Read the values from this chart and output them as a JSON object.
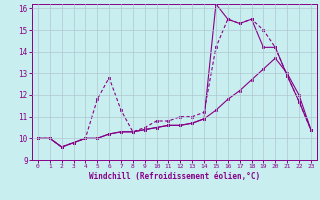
{
  "xlabel": "Windchill (Refroidissement éolien,°C)",
  "bg_color": "#c8eef0",
  "grid_color": "#b0c8d0",
  "line_color": "#880088",
  "xlim": [
    -0.5,
    23.5
  ],
  "ylim": [
    9,
    16.2
  ],
  "xticks": [
    0,
    1,
    2,
    3,
    4,
    5,
    6,
    7,
    8,
    9,
    10,
    11,
    12,
    13,
    14,
    15,
    16,
    17,
    18,
    19,
    20,
    21,
    22,
    23
  ],
  "yticks": [
    9,
    10,
    11,
    12,
    13,
    14,
    15,
    16
  ],
  "line1_x": [
    0,
    1,
    2,
    3,
    4,
    5,
    6,
    7,
    8,
    9,
    10,
    11,
    12,
    13,
    14,
    15,
    16,
    17,
    18,
    19,
    20,
    21,
    22,
    23
  ],
  "line1_y": [
    10,
    10,
    9.6,
    9.8,
    10,
    10,
    10.2,
    10.3,
    10.3,
    10.4,
    10.5,
    10.6,
    10.6,
    10.7,
    10.9,
    11.3,
    11.8,
    12.2,
    12.7,
    13.2,
    13.7,
    13.0,
    12.0,
    10.4
  ],
  "line2_x": [
    0,
    1,
    2,
    3,
    4,
    5,
    6,
    7,
    8,
    9,
    10,
    11,
    12,
    13,
    14,
    15,
    16,
    17,
    18,
    19,
    20,
    21,
    22,
    23
  ],
  "line2_y": [
    10,
    10,
    9.6,
    9.8,
    10,
    11.8,
    12.8,
    11.3,
    10.3,
    10.5,
    10.8,
    10.8,
    11.0,
    11.0,
    11.2,
    14.2,
    15.5,
    15.3,
    15.5,
    15.0,
    14.2,
    12.9,
    11.7,
    10.4
  ],
  "line3_x": [
    0,
    1,
    2,
    3,
    4,
    5,
    6,
    7,
    8,
    9,
    10,
    11,
    12,
    13,
    14,
    15,
    16,
    17,
    18,
    19,
    20,
    21,
    22,
    23
  ],
  "line3_y": [
    10,
    10,
    9.6,
    9.8,
    10,
    10,
    10.2,
    10.3,
    10.3,
    10.4,
    10.5,
    10.6,
    10.6,
    10.7,
    10.9,
    16.2,
    15.5,
    15.3,
    15.5,
    14.2,
    14.2,
    12.9,
    11.7,
    10.4
  ]
}
